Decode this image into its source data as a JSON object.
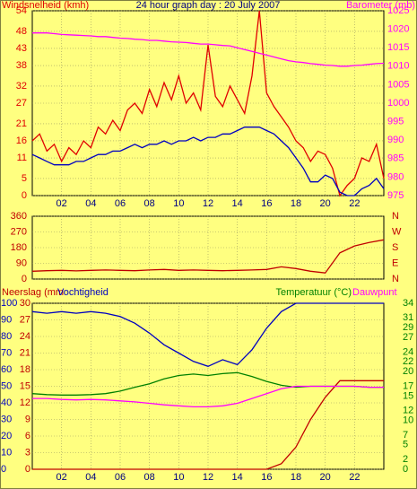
{
  "chart_data": [
    {
      "type": "line",
      "title": "24 hour graph day : 20 July 2007",
      "ylabel": "Windsnelheid (kmh)",
      "y2label": "Barometer (mb)",
      "xlim": [
        0,
        24
      ],
      "xticks": [
        {
          "value": 2,
          "label": "02"
        },
        {
          "value": 4,
          "label": "04"
        },
        {
          "value": 6,
          "label": "06"
        },
        {
          "value": 8,
          "label": "08"
        },
        {
          "value": 10,
          "label": "10"
        },
        {
          "value": 12,
          "label": "12"
        },
        {
          "value": 14,
          "label": "14"
        },
        {
          "value": 16,
          "label": "16"
        },
        {
          "value": 18,
          "label": "18"
        },
        {
          "value": 20,
          "label": "20"
        },
        {
          "value": 22,
          "label": "22"
        }
      ],
      "ylim": [
        0,
        54
      ],
      "yticks": [
        0,
        5,
        11,
        16,
        21,
        27,
        32,
        38,
        43,
        48,
        54
      ],
      "y2lim": [
        975,
        1025
      ],
      "y2ticks": [
        975,
        980,
        985,
        990,
        995,
        1000,
        1005,
        1010,
        1015,
        1020,
        1025
      ],
      "grid": true,
      "x": [
        0,
        0.5,
        1,
        1.5,
        2,
        2.5,
        3,
        3.5,
        4,
        4.5,
        5,
        5.5,
        6,
        6.5,
        7,
        7.5,
        8,
        8.5,
        9,
        9.5,
        10,
        10.5,
        11,
        11.5,
        12,
        12.5,
        13,
        13.5,
        14,
        14.5,
        15,
        15.5,
        16,
        16.5,
        17,
        17.5,
        18,
        18.5,
        19,
        19.5,
        20,
        20.5,
        21,
        21.5,
        22,
        22.5,
        23,
        23.5,
        24
      ],
      "series": [
        {
          "color": "#e00000",
          "values": [
            16,
            18,
            13,
            15,
            10,
            14,
            12,
            16,
            14,
            20,
            18,
            22,
            19,
            25,
            27,
            24,
            31,
            26,
            33,
            28,
            35,
            27,
            30,
            25,
            44,
            29,
            26,
            32,
            28,
            24,
            35,
            54,
            30,
            26,
            23,
            20,
            16,
            14,
            10,
            13,
            12,
            8,
            0,
            3,
            5,
            11,
            10,
            15,
            5
          ]
        },
        {
          "color": "#0000c0",
          "values": [
            12,
            11,
            10,
            9,
            9,
            9,
            10,
            10,
            11,
            12,
            12,
            13,
            13,
            14,
            15,
            14,
            15,
            15,
            16,
            15,
            16,
            16,
            17,
            16,
            17,
            17,
            18,
            18,
            19,
            20,
            20,
            20,
            19,
            18,
            16,
            14,
            11,
            8,
            4,
            4,
            6,
            5,
            1,
            0,
            0,
            2,
            3,
            5,
            2
          ]
        },
        {
          "color": "#ff00ff",
          "axis": "y2",
          "values": [
            1019,
            1019,
            1019,
            1018.8,
            1018.6,
            1018.5,
            1018.4,
            1018.3,
            1018.2,
            1018,
            1018,
            1017.8,
            1017.6,
            1017.5,
            1017.3,
            1017.2,
            1017,
            1017,
            1016.8,
            1016.6,
            1016.5,
            1016.4,
            1016.2,
            1016,
            1016,
            1015.8,
            1015.6,
            1015.5,
            1015,
            1014.5,
            1014,
            1013.5,
            1013,
            1012.5,
            1012,
            1011.5,
            1011.2,
            1011,
            1010.7,
            1010.5,
            1010.3,
            1010.2,
            1010,
            1010,
            1010.2,
            1010.3,
            1010.5,
            1010.7,
            1010.8
          ]
        }
      ]
    },
    {
      "type": "line",
      "xlim": [
        0,
        24
      ],
      "ylim": [
        0,
        360
      ],
      "yticks": [
        0,
        90,
        180,
        270,
        360
      ],
      "y2lim": [
        0,
        360
      ],
      "y2ticks": [
        {
          "value": 0,
          "label": "N"
        },
        {
          "value": 90,
          "label": "E"
        },
        {
          "value": 180,
          "label": "S"
        },
        {
          "value": 270,
          "label": "W"
        },
        {
          "value": 360,
          "label": "N"
        }
      ],
      "grid": true,
      "x": [
        0,
        1,
        2,
        3,
        4,
        5,
        6,
        7,
        8,
        9,
        10,
        11,
        12,
        13,
        14,
        15,
        16,
        17,
        18,
        19,
        20,
        21,
        22,
        23,
        24
      ],
      "series": [
        {
          "color": "#c00000",
          "values": [
            45,
            48,
            50,
            47,
            50,
            52,
            50,
            48,
            52,
            55,
            50,
            52,
            50,
            48,
            50,
            52,
            55,
            70,
            60,
            45,
            35,
            150,
            190,
            210,
            225
          ]
        }
      ]
    },
    {
      "type": "line",
      "xlim": [
        0,
        24
      ],
      "xticks": [
        {
          "value": 2,
          "label": "02"
        },
        {
          "value": 4,
          "label": "04"
        },
        {
          "value": 6,
          "label": "06"
        },
        {
          "value": 8,
          "label": "08"
        },
        {
          "value": 10,
          "label": "10"
        },
        {
          "value": 12,
          "label": "12"
        },
        {
          "value": 14,
          "label": "14"
        },
        {
          "value": 16,
          "label": "16"
        },
        {
          "value": 18,
          "label": "18"
        },
        {
          "value": 20,
          "label": "20"
        },
        {
          "value": 22,
          "label": "22"
        }
      ],
      "ylim": [
        0,
        30
      ],
      "yticks": [
        0,
        3,
        6,
        9,
        12,
        15,
        18,
        21,
        24,
        27,
        30
      ],
      "y3lim": [
        0,
        100
      ],
      "y3ticks": [
        0,
        10,
        20,
        30,
        40,
        50,
        60,
        70,
        80,
        90,
        100
      ],
      "y2lim": [
        0,
        34
      ],
      "y2ticks": [
        0,
        2,
        5,
        7,
        10,
        12,
        15,
        17,
        20,
        22,
        24,
        27,
        29,
        31,
        34
      ],
      "grid": true,
      "x": [
        0,
        1,
        2,
        3,
        4,
        5,
        6,
        7,
        8,
        9,
        10,
        11,
        12,
        13,
        14,
        15,
        16,
        17,
        18,
        19,
        20,
        21,
        22,
        23,
        24
      ],
      "series": [
        {
          "name": "Neerslag (mm",
          "color": "#c00000",
          "values": [
            0,
            0,
            0,
            0,
            0,
            0,
            0,
            0,
            0,
            0,
            0,
            0,
            0,
            0,
            0,
            0,
            0,
            1,
            4,
            9,
            13,
            16,
            16,
            16,
            16
          ]
        },
        {
          "name": "Vochtigheid",
          "color": "#0000c0",
          "axis": "y3",
          "values": [
            95,
            94,
            95,
            94,
            95,
            94,
            92,
            88,
            82,
            75,
            70,
            65,
            62,
            66,
            63,
            72,
            85,
            95,
            100,
            100,
            100,
            100,
            100,
            100,
            100
          ]
        },
        {
          "name": "Temperatuur (°C)",
          "color": "#008000",
          "axis": "y2",
          "values": [
            15.5,
            15.3,
            15.2,
            15.2,
            15.3,
            15.5,
            16,
            16.8,
            17.5,
            18.5,
            19.2,
            19.5,
            19.2,
            19.6,
            19.8,
            19,
            18,
            17.2,
            16.8,
            17,
            17,
            17,
            17,
            16.8,
            16.8
          ]
        },
        {
          "name": "Dauwpunt",
          "color": "#ff00ff",
          "axis": "y2",
          "values": [
            14.5,
            14.5,
            14.3,
            14.2,
            14.3,
            14.2,
            14,
            13.8,
            13.5,
            13.2,
            13,
            12.8,
            12.8,
            13,
            13.5,
            14.5,
            15.5,
            16.5,
            17,
            17,
            17,
            17,
            17,
            16.8,
            16.8
          ]
        }
      ]
    }
  ]
}
